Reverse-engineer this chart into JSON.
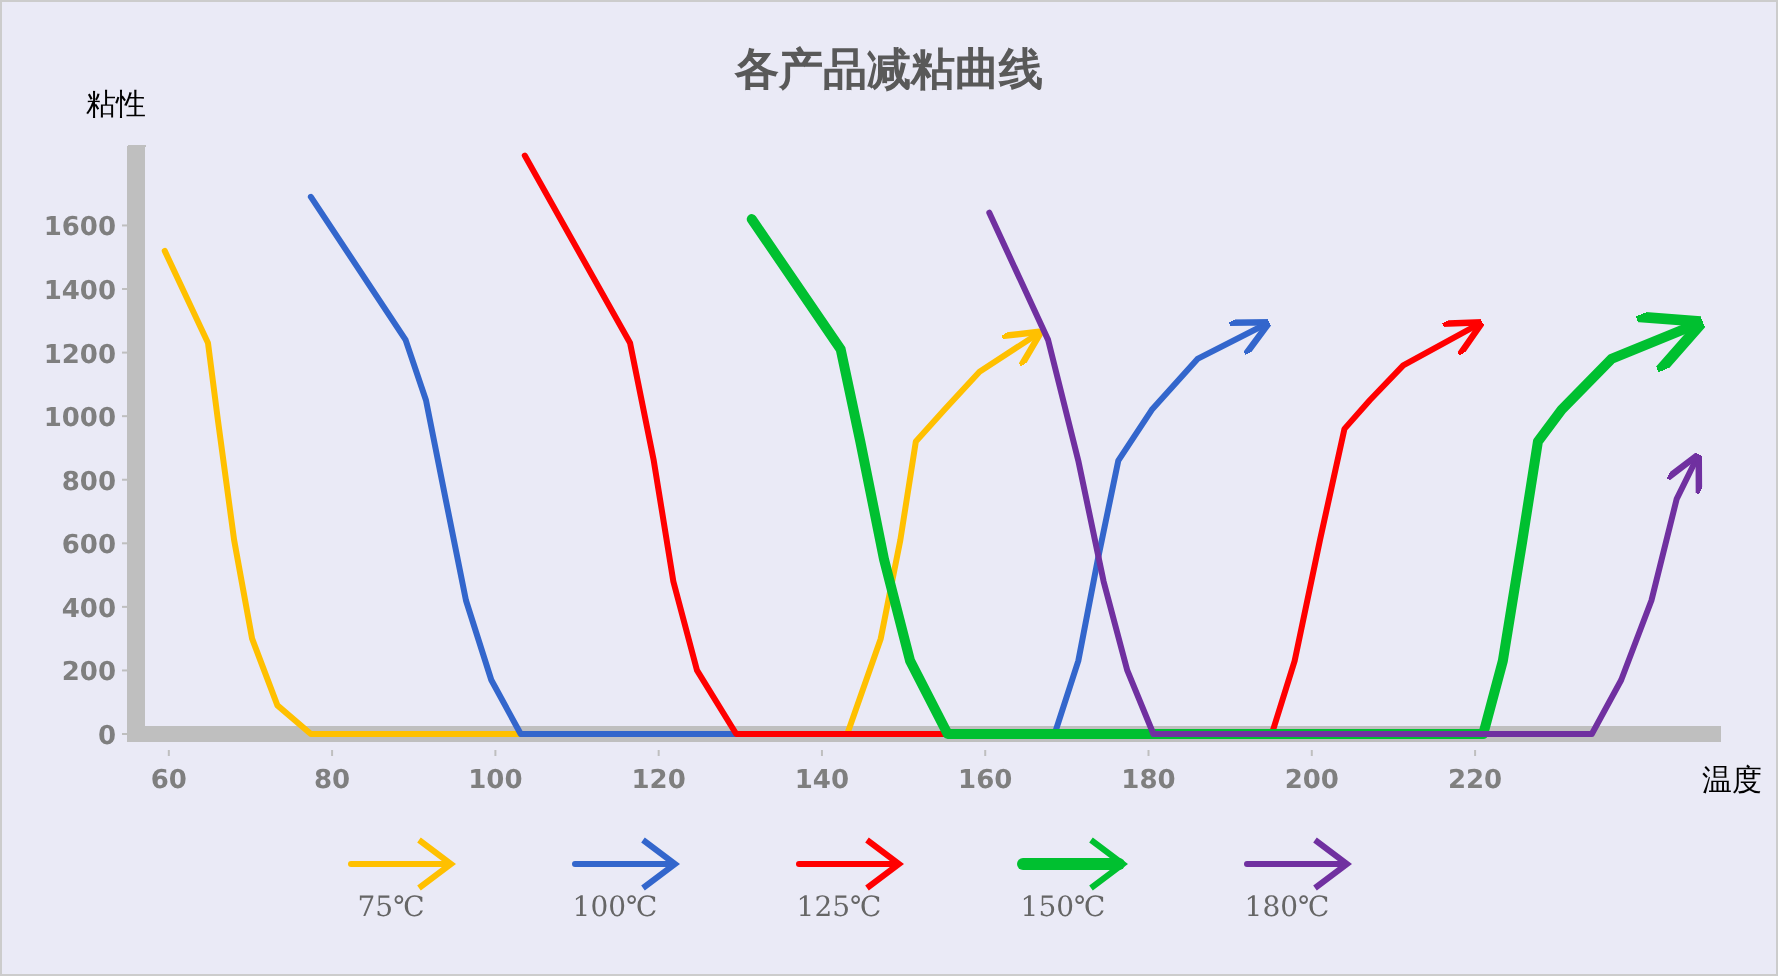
{
  "chart_data": {
    "type": "line",
    "title": "各产品减粘曲线",
    "xlabel": "温度",
    "ylabel": "粘性",
    "legend": "bottom",
    "grid": false,
    "xlim": [
      55,
      250
    ],
    "ylim": [
      0,
      1850
    ],
    "xticks": [
      60,
      80,
      100,
      120,
      140,
      160,
      180,
      200,
      220
    ],
    "yticks": [
      0,
      200,
      400,
      600,
      800,
      1000,
      1200,
      1400,
      1600
    ],
    "series": [
      {
        "name": "75℃",
        "color": "#ffc000",
        "x": [
          59.5,
          64.8,
          66,
          68,
          70.2,
          73.3,
          77.4,
          88,
          100,
          143.1,
          147.2,
          149.6,
          151.5,
          155,
          159.3,
          166.5
        ],
        "values": [
          1520,
          1230,
          990,
          610,
          300,
          90,
          0,
          0,
          0,
          0,
          300,
          610,
          920,
          1020,
          1140,
          1260
        ]
      },
      {
        "name": "100℃",
        "color": "#3366cc",
        "x": [
          77.4,
          89,
          91.5,
          93.9,
          96.4,
          99.5,
          103.1,
          168.5,
          171.4,
          173.8,
          176.3,
          180.4,
          186,
          194.4
        ],
        "values": [
          1690,
          1240,
          1050,
          740,
          420,
          170,
          0,
          0,
          230,
          550,
          860,
          1020,
          1180,
          1290
        ]
      },
      {
        "name": "125℃",
        "color": "#ff0000",
        "x": [
          103.6,
          116.5,
          119.4,
          121.8,
          124.7,
          129.5,
          195.1,
          197.9,
          201,
          204,
          207.1,
          211.2,
          220.5
        ],
        "values": [
          1820,
          1230,
          860,
          480,
          200,
          0,
          0,
          230,
          610,
          960,
          1050,
          1160,
          1290
        ]
      },
      {
        "name": "150℃",
        "color": "#00c030",
        "x": [
          131.4,
          142.3,
          144.7,
          147.6,
          150.8,
          155.4,
          221,
          223.4,
          225.8,
          227.7,
          230.6,
          236.7,
          247.2
        ],
        "values": [
          1620,
          1210,
          920,
          550,
          230,
          0,
          0,
          230,
          610,
          920,
          1020,
          1180,
          1290
        ]
      },
      {
        "name": "180℃",
        "color": "#7030a0",
        "x": [
          160.5,
          167.7,
          171.4,
          174.5,
          177.4,
          180.6,
          234.3,
          237.9,
          241.6,
          244.7,
          247.2
        ],
        "values": [
          1640,
          1240,
          860,
          480,
          200,
          0,
          0,
          170,
          420,
          740,
          870
        ]
      }
    ]
  }
}
